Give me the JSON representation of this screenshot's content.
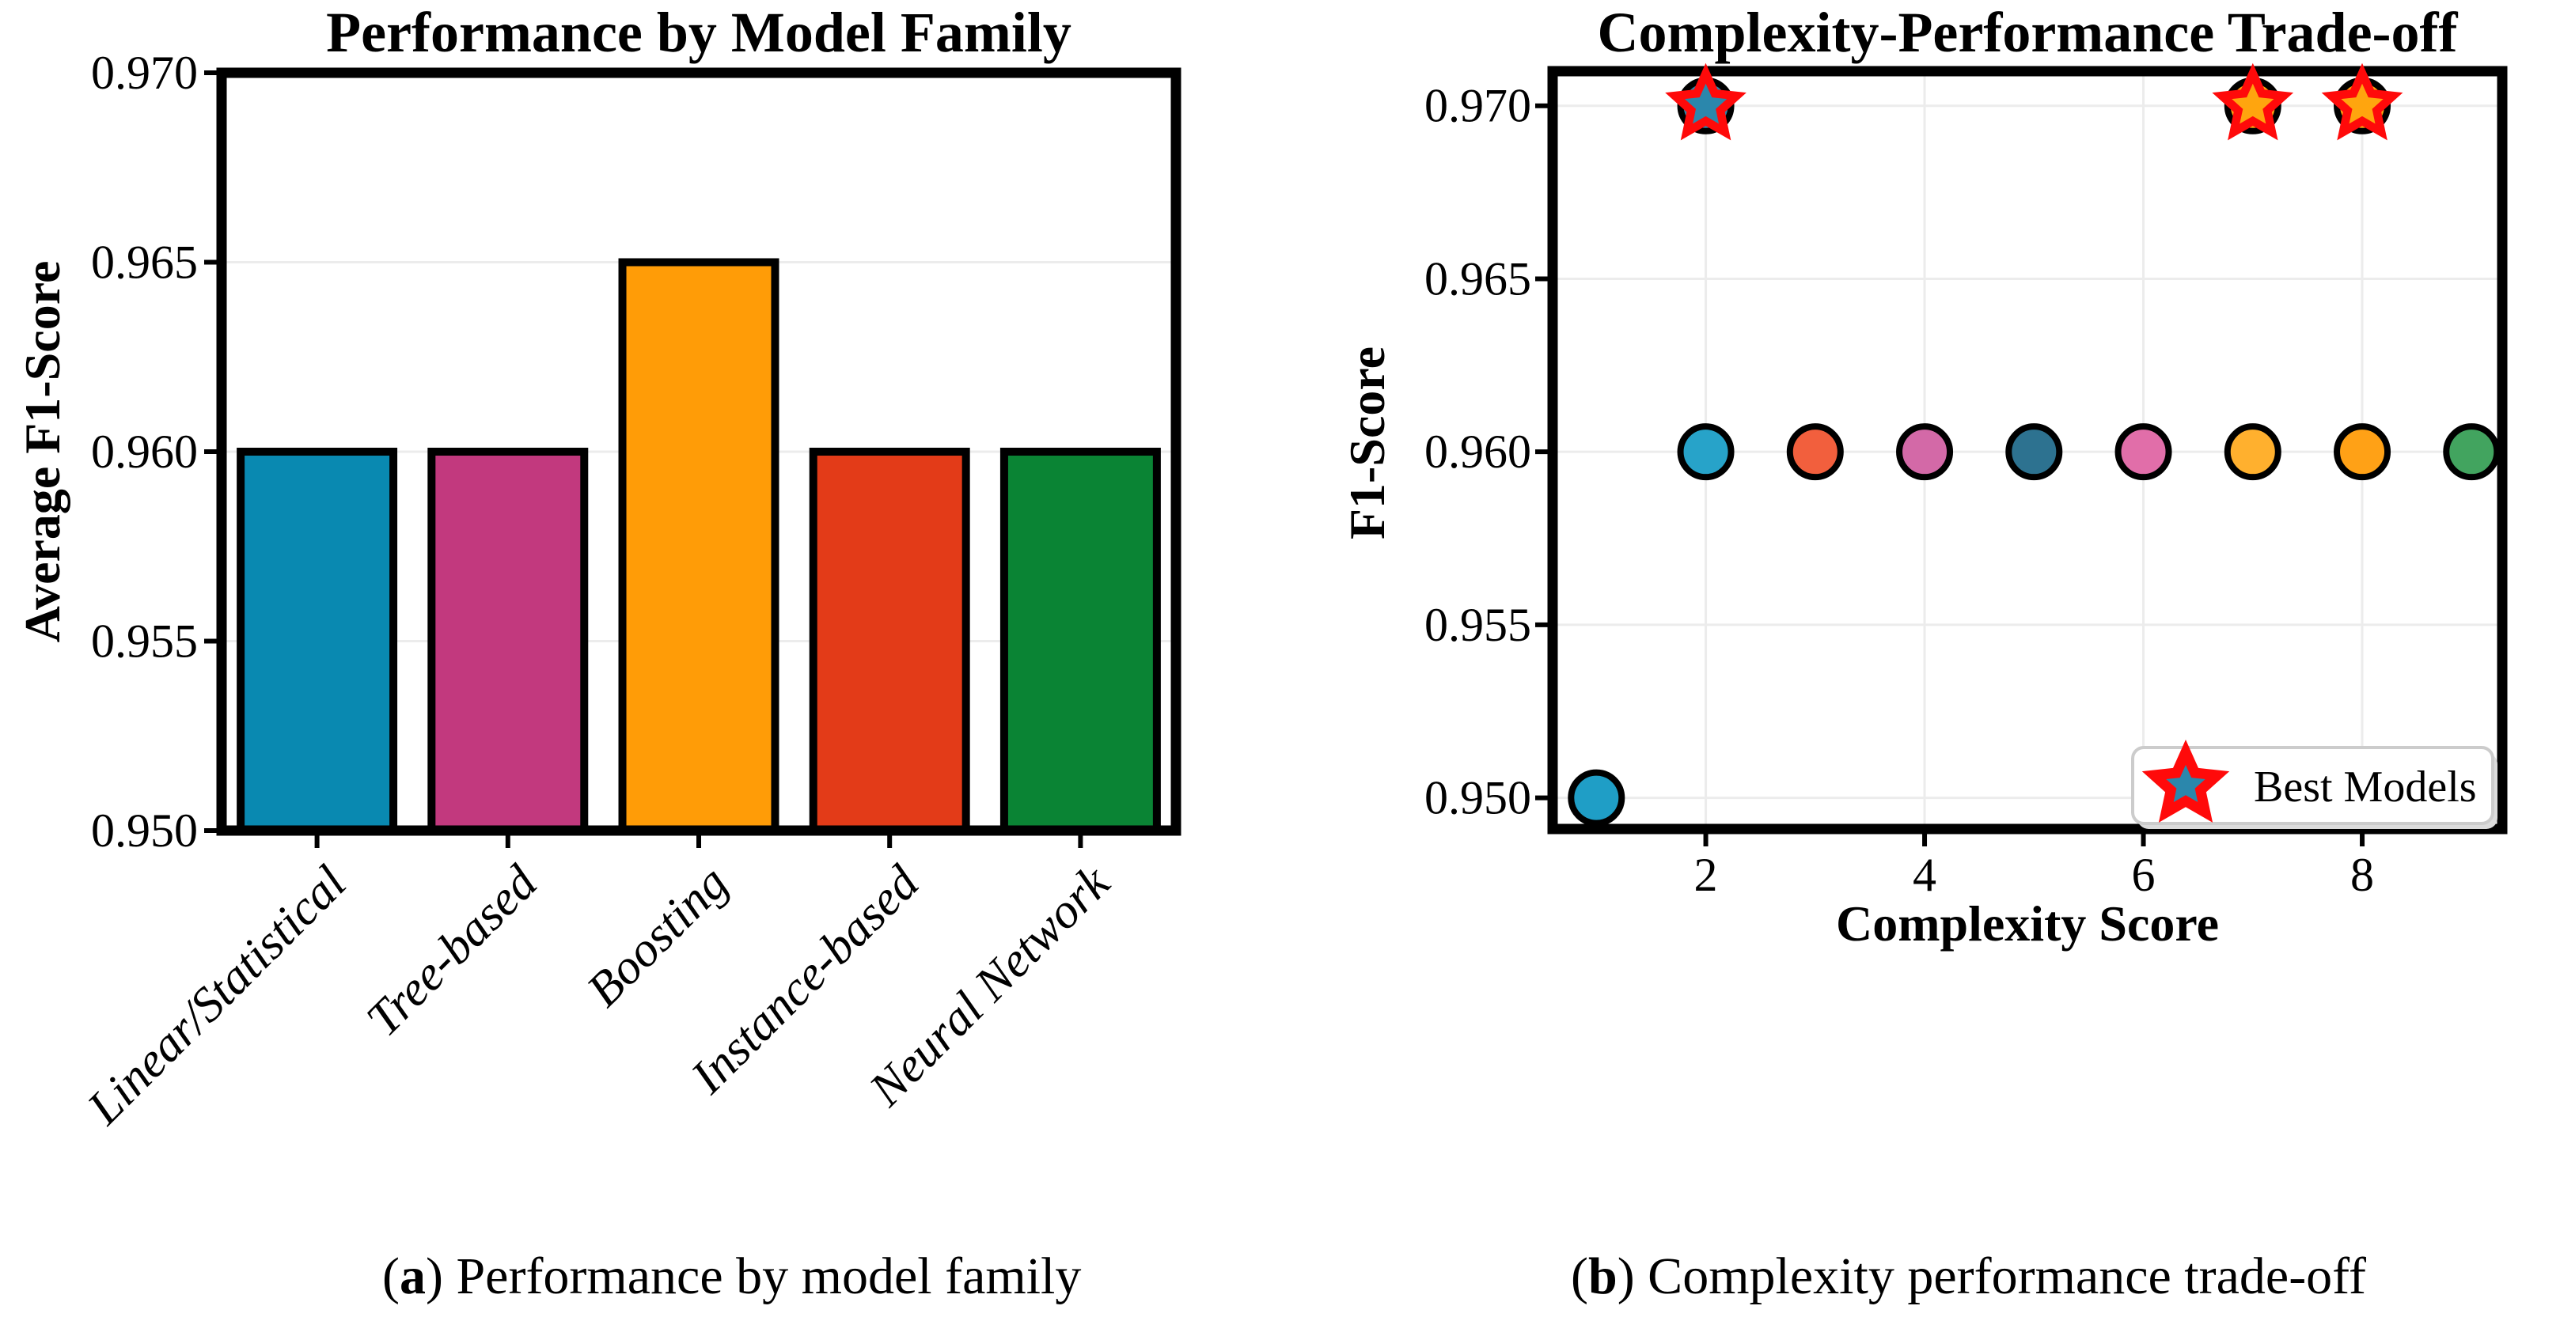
{
  "captions": {
    "a": {
      "open": "(",
      "label": "a",
      "rest": ") Performance by model family"
    },
    "b": {
      "open": "(",
      "label": "b",
      "rest": ") Complexity performance trade-off"
    }
  },
  "palette": {
    "grid": "#ececec",
    "spine": "#000000",
    "bar_edge": "#000000",
    "point_edge": "#000000",
    "star_edge": "#ff0a0a",
    "legend_border": "#cccccc",
    "legend_shadow": "#dcdcdc",
    "background": "#ffffff"
  },
  "chart_data": [
    {
      "id": "performance-by-model-family",
      "type": "bar",
      "title": "Performance by Model Family",
      "xlabel": "",
      "ylabel": "Average F1-Score",
      "categories": [
        "Linear/Statistical",
        "Tree-based",
        "Boosting",
        "Instance-based",
        "Neural Network"
      ],
      "values": [
        0.96,
        0.96,
        0.965,
        0.96,
        0.96
      ],
      "bar_colors": [
        "#0989b1",
        "#c2397e",
        "#ff9c07",
        "#e33b18",
        "#0a8434"
      ],
      "ylim": [
        0.95,
        0.97
      ],
      "yticks": [
        "0.950",
        "0.955",
        "0.960",
        "0.965",
        "0.970"
      ],
      "grid": true,
      "legend_position": "none"
    },
    {
      "id": "complexity-performance-tradeoff",
      "type": "scatter",
      "title": "Complexity-Performance Trade-off",
      "xlabel": "Complexity Score",
      "ylabel": "F1-Score",
      "points": [
        {
          "x": 1,
          "y": 0.95,
          "color": "#1f9ec6"
        },
        {
          "x": 2,
          "y": 0.96,
          "color": "#27a3c9"
        },
        {
          "x": 3,
          "y": 0.96,
          "color": "#f25f3d"
        },
        {
          "x": 4,
          "y": 0.96,
          "color": "#d369a7"
        },
        {
          "x": 5,
          "y": 0.96,
          "color": "#2d7290"
        },
        {
          "x": 6,
          "y": 0.96,
          "color": "#e16ea9"
        },
        {
          "x": 7,
          "y": 0.96,
          "color": "#ffb02e"
        },
        {
          "x": 8,
          "y": 0.96,
          "color": "#ffa116"
        },
        {
          "x": 9,
          "y": 0.96,
          "color": "#42a45f"
        }
      ],
      "best_models": [
        {
          "x": 2,
          "y": 0.97,
          "fill": "#2b87ac"
        },
        {
          "x": 7,
          "y": 0.97,
          "fill": "#ffa50e"
        },
        {
          "x": 8,
          "y": 0.97,
          "fill": "#ffa50e"
        }
      ],
      "legend": {
        "label": "Best Models",
        "position": "lower right"
      },
      "xlim": [
        0.6,
        9.28
      ],
      "ylim": [
        0.9491,
        0.971
      ],
      "xticks": [
        "2",
        "4",
        "6",
        "8"
      ],
      "yticks": [
        "0.950",
        "0.955",
        "0.960",
        "0.965",
        "0.970"
      ],
      "grid": true
    }
  ]
}
